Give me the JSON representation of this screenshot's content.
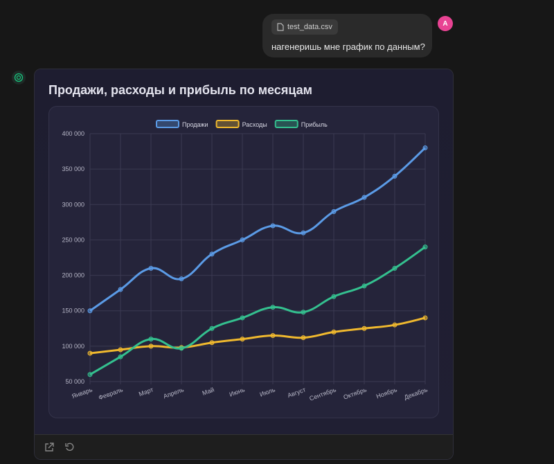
{
  "user_message": {
    "file_name": "test_data.csv",
    "file_icon": "file-icon",
    "text": "нагенеришь мне график по данным?",
    "avatar_letter": "A"
  },
  "assistant": {
    "icon": "openai-logo-icon",
    "card_title": "Продажи, расходы и прибыль по месяцам",
    "toolbar": {
      "open_icon": "external-link-icon",
      "reload_icon": "refresh-icon"
    }
  },
  "chart_data": {
    "type": "line",
    "title": "",
    "xlabel": "",
    "ylabel": "",
    "categories": [
      "Январь",
      "Февраль",
      "Март",
      "Апрель",
      "Май",
      "Июнь",
      "Июль",
      "Август",
      "Сентябрь",
      "Октябрь",
      "Ноябрь",
      "Декабрь"
    ],
    "ylim": [
      50000,
      400000
    ],
    "yticks": [
      50000,
      100000,
      150000,
      200000,
      250000,
      300000,
      350000,
      400000
    ],
    "ytick_labels": [
      "50 000",
      "100 000",
      "150 000",
      "200 000",
      "250 000",
      "300 000",
      "350 000",
      "400 000"
    ],
    "grid": true,
    "legend_position": "top",
    "series": [
      {
        "name": "Продажи",
        "color": "#5b9be6",
        "values": [
          150000,
          180000,
          210000,
          195000,
          230000,
          250000,
          270000,
          260000,
          290000,
          310000,
          340000,
          380000
        ]
      },
      {
        "name": "Расходы",
        "color": "#f0b92e",
        "values": [
          90000,
          95000,
          100000,
          98000,
          105000,
          110000,
          115000,
          112000,
          120000,
          125000,
          130000,
          140000
        ]
      },
      {
        "name": "Прибыль",
        "color": "#34c08f",
        "values": [
          60000,
          85000,
          110000,
          97000,
          125000,
          140000,
          155000,
          148000,
          170000,
          185000,
          210000,
          240000
        ]
      }
    ]
  }
}
